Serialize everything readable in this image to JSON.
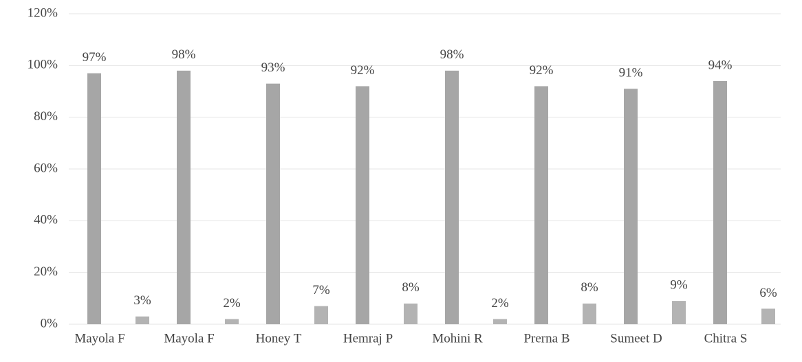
{
  "chart_data": {
    "type": "bar",
    "categories": [
      "Mayola F",
      "Mayola F",
      "Honey T",
      "Hemraj P",
      "Mohini R",
      "Prerna B",
      "Sumeet D",
      "Chitra S"
    ],
    "series": [
      {
        "color": "#a6a6a6",
        "values": [
          97,
          98,
          93,
          92,
          98,
          92,
          91,
          94
        ],
        "value_labels": [
          "97%",
          "98%",
          "93%",
          "92%",
          "98%",
          "92%",
          "91%",
          "94%"
        ]
      },
      {
        "color": "#b3b3b3",
        "values": [
          3,
          2,
          7,
          8,
          2,
          8,
          9,
          6
        ],
        "value_labels": [
          "3%",
          "2%",
          "7%",
          "8%",
          "2%",
          "8%",
          "9%",
          "6%"
        ]
      }
    ],
    "ylim": [
      0,
      120
    ],
    "yticks": [
      {
        "value": 0,
        "label": "0%"
      },
      {
        "value": 20,
        "label": "20%"
      },
      {
        "value": 40,
        "label": "40%"
      },
      {
        "value": 60,
        "label": "60%"
      },
      {
        "value": 80,
        "label": "80%"
      },
      {
        "value": 100,
        "label": "100%"
      },
      {
        "value": 120,
        "label": "120%"
      }
    ],
    "grid": true
  }
}
